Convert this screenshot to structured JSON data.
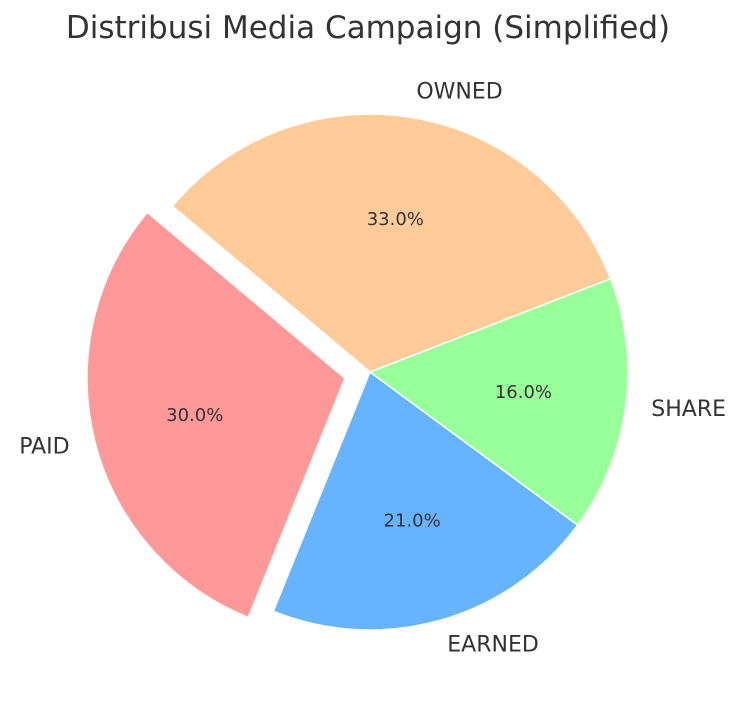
{
  "chart_data": {
    "type": "pie",
    "title": "Distribusi Media Campaign (Simplified)",
    "slices": [
      {
        "label": "PAID",
        "value": 30.0,
        "pct_label": "30.0%",
        "color": "#ff9999",
        "exploded": true
      },
      {
        "label": "EARNED",
        "value": 21.0,
        "pct_label": "21.0%",
        "color": "#66b3ff",
        "exploded": false
      },
      {
        "label": "SHARE",
        "value": 16.0,
        "pct_label": "16.0%",
        "color": "#99ff99",
        "exploded": false
      },
      {
        "label": "OWNED",
        "value": 33.0,
        "pct_label": "33.0%",
        "color": "#ffcc99",
        "exploded": false
      }
    ],
    "start_angle_deg": 140,
    "direction": "counterclockwise",
    "legend": "none"
  }
}
